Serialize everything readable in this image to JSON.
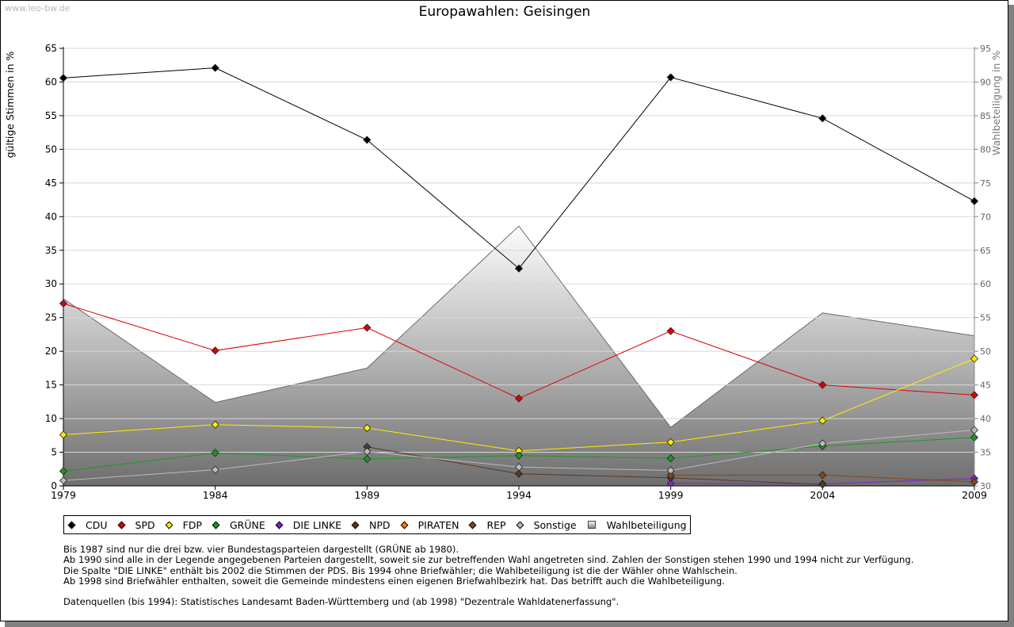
{
  "watermark": "www.leo-bw.de",
  "colors": {
    "CDU": "#000000",
    "SPD": "#dd0000",
    "FDP": "#ffee00",
    "GRUENE": "#1a9a1a",
    "DIE_LINKE": "#8822cc",
    "NPD": "#5a3820",
    "PIRATEN": "#ff7700",
    "REP": "#8b4513",
    "Sonstige": "#bbbbbb",
    "Wahlbeteiligung": "#999999"
  },
  "legend": [
    {
      "label": "CDU",
      "color": "#000000",
      "marker": "diamond"
    },
    {
      "label": "SPD",
      "color": "#dd0000",
      "marker": "diamond"
    },
    {
      "label": "FDP",
      "color": "#ffee00",
      "marker": "diamond"
    },
    {
      "label": "GRÜNE",
      "color": "#1a9a1a",
      "marker": "diamond"
    },
    {
      "label": "DIE LINKE",
      "color": "#8822cc",
      "marker": "diamond"
    },
    {
      "label": "NPD",
      "color": "#5a3820",
      "marker": "diamond"
    },
    {
      "label": "PIRATEN",
      "color": "#ff7700",
      "marker": "diamond"
    },
    {
      "label": "REP",
      "color": "#8b4513",
      "marker": "diamond"
    },
    {
      "label": "Sonstige",
      "color": "#bbbbbb",
      "marker": "diamond"
    },
    {
      "label": "Wahlbeteiligung",
      "color": "#999999",
      "marker": "square"
    }
  ],
  "notes": [
    "Bis 1987 sind nur die drei bzw. vier Bundestagsparteien dargestellt (GRÜNE ab 1980).",
    "Ab 1990 sind alle in der Legende angegebenen Parteien dargestellt, soweit sie zur betreffenden Wahl angetreten sind. Zahlen der Sonstigen stehen 1990 und 1994 nicht zur Verfügung.",
    "Die Spalte \"DIE LINKE\" enthält bis 2002 die Stimmen der PDS. Bis 1994 ohne Briefwähler; die Wahlbeteiligung ist die der Wähler ohne Wahlschein.",
    "Ab 1998 sind Briefwähler enthalten, soweit die Gemeinde mindestens einen eigenen Briefwahlbezirk hat. Das betrifft auch die Wahlbeteiligung.",
    "",
    "Datenquellen (bis 1994): Statistisches Landesamt Baden-Württemberg und (ab 1998) \"Dezentrale Wahldatenerfassung\"."
  ],
  "chart_data": {
    "type": "line",
    "title": "Europawahlen: Geisingen",
    "ylabel": "gültige Stimmen in %",
    "y2label": "Wahlbeteiligung in %",
    "x": [
      "1979",
      "1984",
      "1989",
      "1994",
      "1999",
      "2004",
      "2009"
    ],
    "ylim": [
      0,
      65
    ],
    "yticks": [
      "0",
      "5",
      "10",
      "15",
      "20",
      "25",
      "30",
      "35",
      "40",
      "45",
      "50",
      "55",
      "60",
      "65"
    ],
    "y2lim": [
      30,
      95
    ],
    "y2ticks": [
      "30",
      "35",
      "40",
      "45",
      "50",
      "55",
      "60",
      "65",
      "70",
      "75",
      "80",
      "85",
      "90",
      "95"
    ],
    "grid": true,
    "area": {
      "name": "Wahlbeteiligung",
      "axis": "right",
      "values": [
        57.8,
        42.4,
        47.5,
        68.6,
        38.7,
        55.7,
        52.3
      ]
    },
    "series": [
      {
        "name": "CDU",
        "key": "CDU",
        "values": [
          60.6,
          62.1,
          51.4,
          32.3,
          60.7,
          54.6,
          42.3
        ]
      },
      {
        "name": "SPD",
        "key": "SPD",
        "values": [
          27.1,
          20.1,
          23.5,
          13.0,
          23.0,
          15.0,
          13.5
        ]
      },
      {
        "name": "FDP",
        "key": "FDP",
        "values": [
          7.6,
          9.1,
          8.6,
          5.2,
          6.5,
          9.7,
          18.9
        ]
      },
      {
        "name": "GRÜNE",
        "key": "GRUENE",
        "values": [
          2.2,
          4.9,
          4.0,
          4.5,
          4.1,
          5.9,
          7.2
        ]
      },
      {
        "name": "DIE LINKE",
        "key": "DIE_LINKE",
        "values": [
          null,
          null,
          null,
          null,
          0.4,
          0.3,
          1.1
        ]
      },
      {
        "name": "NPD",
        "key": "NPD",
        "values": [
          null,
          null,
          5.8,
          1.8,
          1.2,
          0.2,
          null
        ]
      },
      {
        "name": "REP",
        "key": "REP",
        "values": [
          null,
          null,
          null,
          null,
          1.6,
          1.6,
          0.6
        ]
      },
      {
        "name": "Sonstige",
        "key": "Sonstige",
        "values": [
          0.8,
          2.4,
          5.1,
          2.8,
          2.3,
          6.3,
          8.3
        ]
      }
    ]
  }
}
